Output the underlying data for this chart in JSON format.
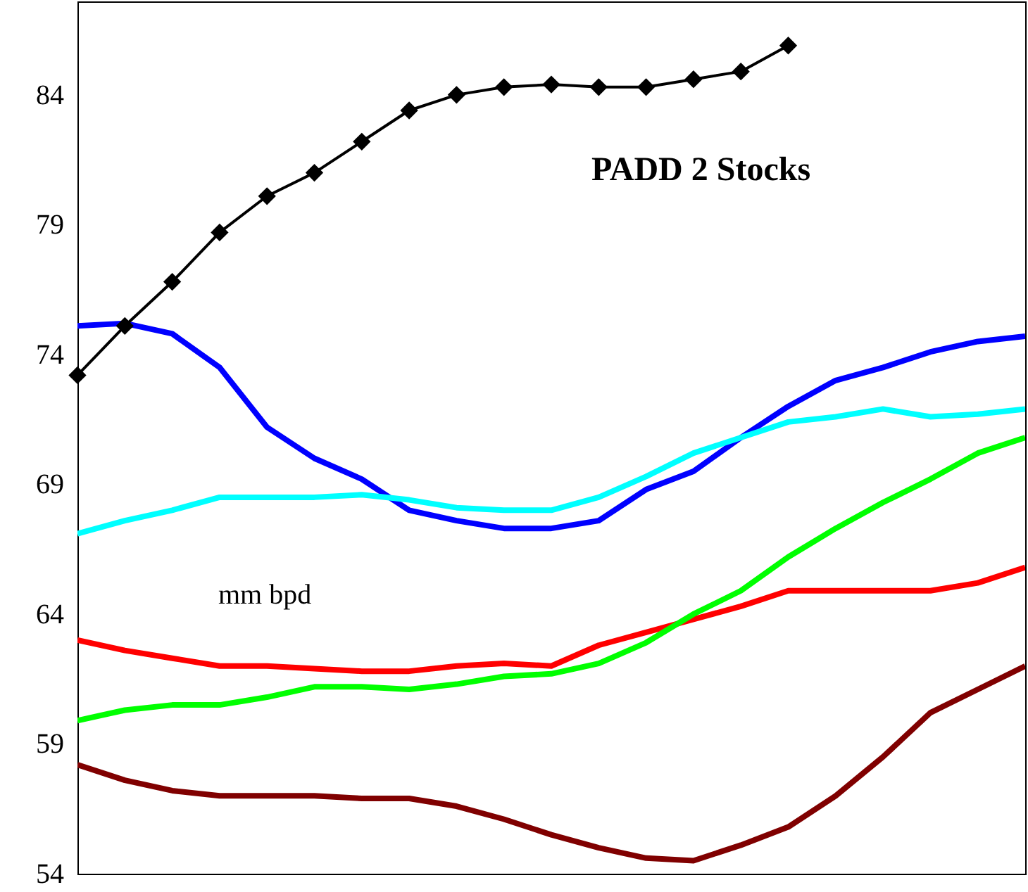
{
  "chart_data": {
    "type": "line",
    "categories": [
      null,
      null,
      null,
      null,
      null,
      null,
      null,
      null,
      null,
      null,
      null,
      null,
      null,
      null,
      null,
      null,
      null,
      null,
      null,
      null,
      null
    ],
    "ylim": [
      54,
      87.6
    ],
    "yticks": [
      54,
      59,
      64,
      69,
      74,
      79,
      84
    ],
    "grid": false,
    "annotations": [
      "PADD 2 Stocks",
      "mm bpd"
    ],
    "series": [
      {
        "color": "#0000ff",
        "values": [
          75.1,
          75.2,
          74.8,
          73.5,
          71.2,
          70.0,
          69.2,
          68.0,
          67.6,
          67.3,
          67.3,
          67.6,
          68.8,
          69.5,
          70.8,
          72.0,
          73.0,
          73.5,
          74.1,
          74.5,
          74.7
        ]
      },
      {
        "color": "#00ffff",
        "values": [
          67.1,
          67.6,
          68.0,
          68.5,
          68.5,
          68.5,
          68.6,
          68.4,
          68.1,
          68.0,
          68.0,
          68.5,
          69.3,
          70.2,
          70.8,
          71.4,
          71.6,
          71.9,
          71.6,
          71.7,
          71.9
        ]
      },
      {
        "color": "#ff0000",
        "values": [
          63.0,
          62.6,
          62.3,
          62.0,
          62.0,
          61.9,
          61.8,
          61.8,
          62.0,
          62.1,
          62.0,
          62.8,
          63.3,
          63.8,
          64.3,
          64.9,
          64.9,
          64.9,
          64.9,
          65.2,
          65.8
        ]
      },
      {
        "color": "#00ff00",
        "values": [
          59.9,
          60.3,
          60.5,
          60.5,
          60.8,
          61.2,
          61.2,
          61.1,
          61.3,
          61.6,
          61.7,
          62.1,
          62.9,
          64.0,
          64.9,
          66.2,
          67.3,
          68.3,
          69.2,
          70.2,
          70.8
        ]
      },
      {
        "color": "#800000",
        "values": [
          58.2,
          57.6,
          57.2,
          57.0,
          57.0,
          57.0,
          56.9,
          56.9,
          56.6,
          56.1,
          55.5,
          55.0,
          54.6,
          54.5,
          55.1,
          55.8,
          57.0,
          58.5,
          60.2,
          61.1,
          62.0
        ]
      },
      {
        "color": "#000000",
        "marker": "diamond",
        "values": [
          73.2,
          75.1,
          76.8,
          78.7,
          80.1,
          81.0,
          82.2,
          83.4,
          84.0,
          84.3,
          84.4,
          84.3,
          84.3,
          84.6,
          84.9,
          85.9,
          null,
          null,
          null,
          null,
          null
        ]
      }
    ]
  }
}
